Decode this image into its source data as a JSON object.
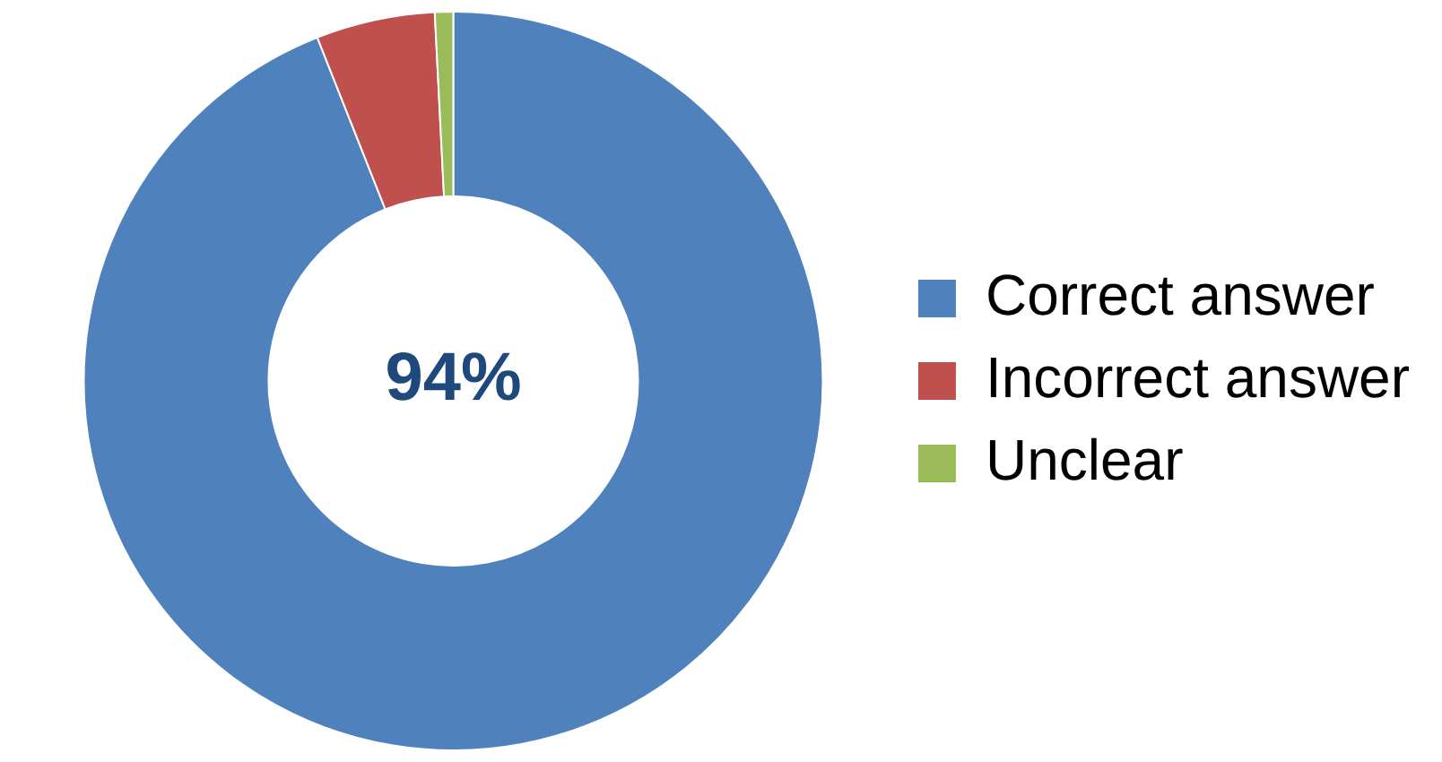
{
  "chart_data": {
    "type": "donut",
    "categories": [
      "Correct answer",
      "Incorrect answer",
      "Unclear"
    ],
    "values": [
      94,
      5.2,
      0.8
    ],
    "colors": [
      "#4f81bd",
      "#c0504d",
      "#9bbb59"
    ],
    "annotations": [
      "94%"
    ],
    "legend": "right"
  }
}
